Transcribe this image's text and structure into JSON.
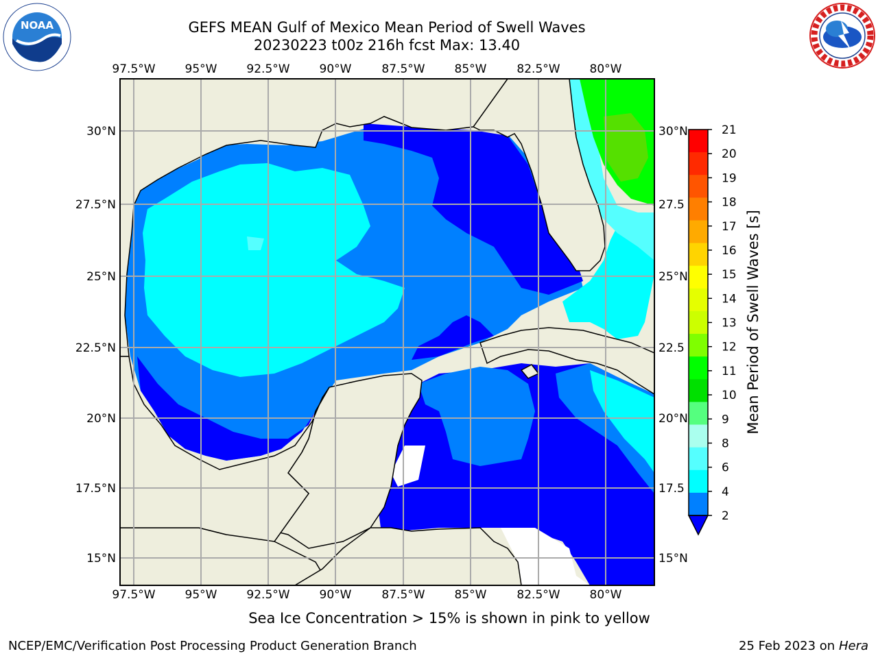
{
  "title_line1": "GEFS MEAN Gulf of Mexico Mean Period of Swell Waves",
  "title_line2": "20230223 t00z 216h fcst   Max: 13.40",
  "lon_labels": [
    "97.5°W",
    "95°W",
    "92.5°W",
    "90°W",
    "87.5°W",
    "85°W",
    "82.5°W",
    "80°W"
  ],
  "lat_labels": [
    "30°N",
    "27.5°N",
    "25°N",
    "22.5°N",
    "20°N",
    "17.5°N",
    "15°N"
  ],
  "lat_labels_right": [
    "30°N",
    "27.5",
    "25°N",
    "22.5",
    "20°N",
    "17.5",
    "15°N"
  ],
  "colorbar": {
    "label": "Mean Period of Swell Waves [s]",
    "ticks": [
      "21",
      "20",
      "19",
      "18",
      "17",
      "16",
      "15",
      "14",
      "13",
      "12",
      "11",
      "10",
      "9",
      "8",
      "6",
      "4",
      "2"
    ],
    "colors_top_to_bottom": [
      "#ff0000",
      "#ff2a00",
      "#ff5500",
      "#ff7f00",
      "#ffaa00",
      "#ffd400",
      "#ffff00",
      "#e5ff00",
      "#ccff00",
      "#7fff00",
      "#00ff00",
      "#00e000",
      "#55ff7f",
      "#aaffee",
      "#55ffff",
      "#00ffff",
      "#0080ff"
    ],
    "extend_color": "#0000ff"
  },
  "map_colors": {
    "land": "#eeeedd",
    "nodata": "#ffffff",
    "swell_2_4": "#0000ff",
    "swell_4_6": "#0080ff",
    "swell_6_8": "#00ffff",
    "swell_8_9": "#55ffff",
    "swell_10_11": "#00ff00",
    "swell_11_12": "#80ff00",
    "swell_12_13": "#ccff00"
  },
  "logos": {
    "left": "noaa-logo",
    "right": "nws-logo"
  },
  "ice_note": "Sea Ice Concentration > 15% is shown in pink to yellow",
  "credit": "NCEP/EMC/Verification Post Processing Product Generation Branch",
  "date_text": "25 Feb 2023 on",
  "date_host": "Hera"
}
